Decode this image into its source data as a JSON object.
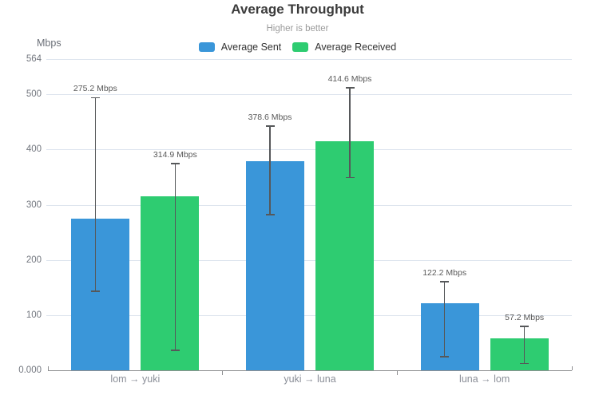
{
  "chart_data": {
    "type": "bar",
    "title": "Average Throughput",
    "subtitle": "Higher is better",
    "ylabel": "Mbps",
    "ylim": [
      0,
      564
    ],
    "grid": true,
    "legend_position": "top",
    "yticks": [
      {
        "value": 564,
        "label": "564"
      },
      {
        "value": 500,
        "label": "500"
      },
      {
        "value": 400,
        "label": "400"
      },
      {
        "value": 300,
        "label": "300"
      },
      {
        "value": 200,
        "label": "200"
      },
      {
        "value": 100,
        "label": "100"
      },
      {
        "value": 0,
        "label": "0.000"
      }
    ],
    "categories": [
      "lom → yuki",
      "yuki → luna",
      "luna → lom"
    ],
    "series": [
      {
        "name": "Average Sent",
        "color": "#3A96D9",
        "values": [
          275.2,
          378.6,
          122.2
        ],
        "value_labels": [
          "275.2 Mbps",
          "378.6 Mbps",
          "122.2 Mbps"
        ],
        "error_low": [
          143,
          282,
          24
        ],
        "error_high": [
          494,
          443,
          161
        ]
      },
      {
        "name": "Average Received",
        "color": "#2ECC71",
        "values": [
          314.9,
          414.6,
          57.2
        ],
        "value_labels": [
          "314.9 Mbps",
          "414.6 Mbps",
          "57.2 Mbps"
        ],
        "error_low": [
          36,
          349,
          12
        ],
        "error_high": [
          375,
          512,
          80
        ]
      }
    ]
  }
}
